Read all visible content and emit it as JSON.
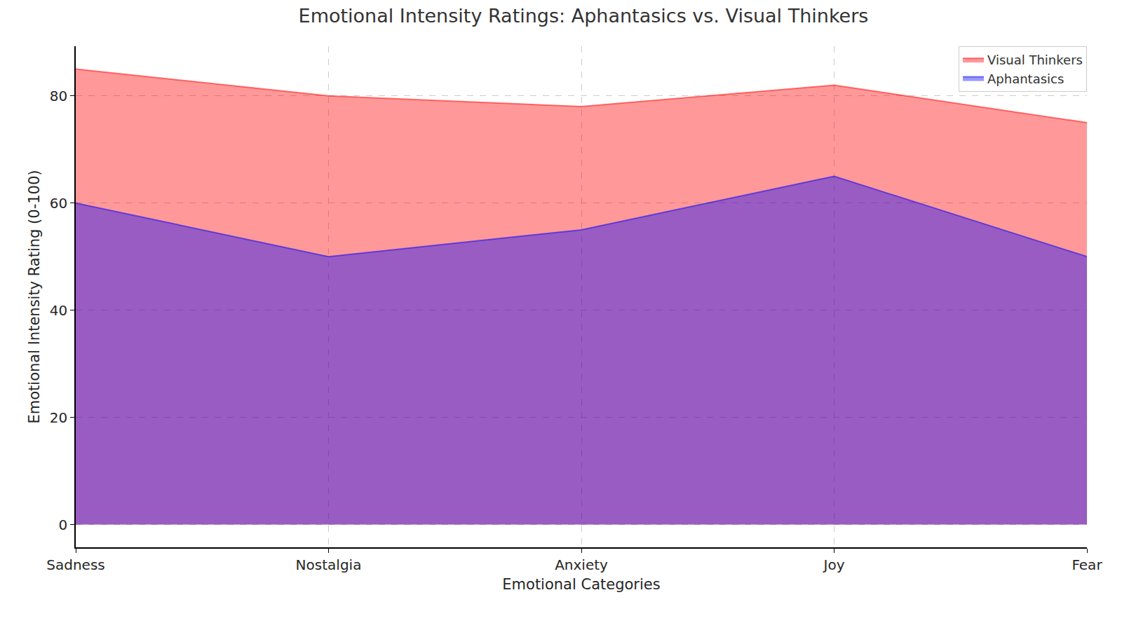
{
  "chart_data": {
    "type": "area",
    "title": "Emotional Intensity Ratings: Aphantasics vs. Visual Thinkers",
    "x_label": "Emotional Categories",
    "y_label": "Emotional Intensity Rating (0-100)",
    "categories": [
      "Sadness",
      "Nostalgia",
      "Anxiety",
      "Joy",
      "Fear"
    ],
    "series": [
      {
        "name": "Visual Thinkers",
        "color": "#ff0000",
        "values": [
          85,
          80,
          78,
          82,
          75
        ]
      },
      {
        "name": "Aphantasics",
        "color": "#0000ff",
        "values": [
          60,
          50,
          55,
          65,
          50
        ]
      }
    ],
    "stacked": false,
    "ylim": [
      -4.25,
      89.25
    ],
    "yticks": [
      0,
      20,
      40,
      60,
      80
    ],
    "grid": true,
    "legend": "upper right"
  }
}
